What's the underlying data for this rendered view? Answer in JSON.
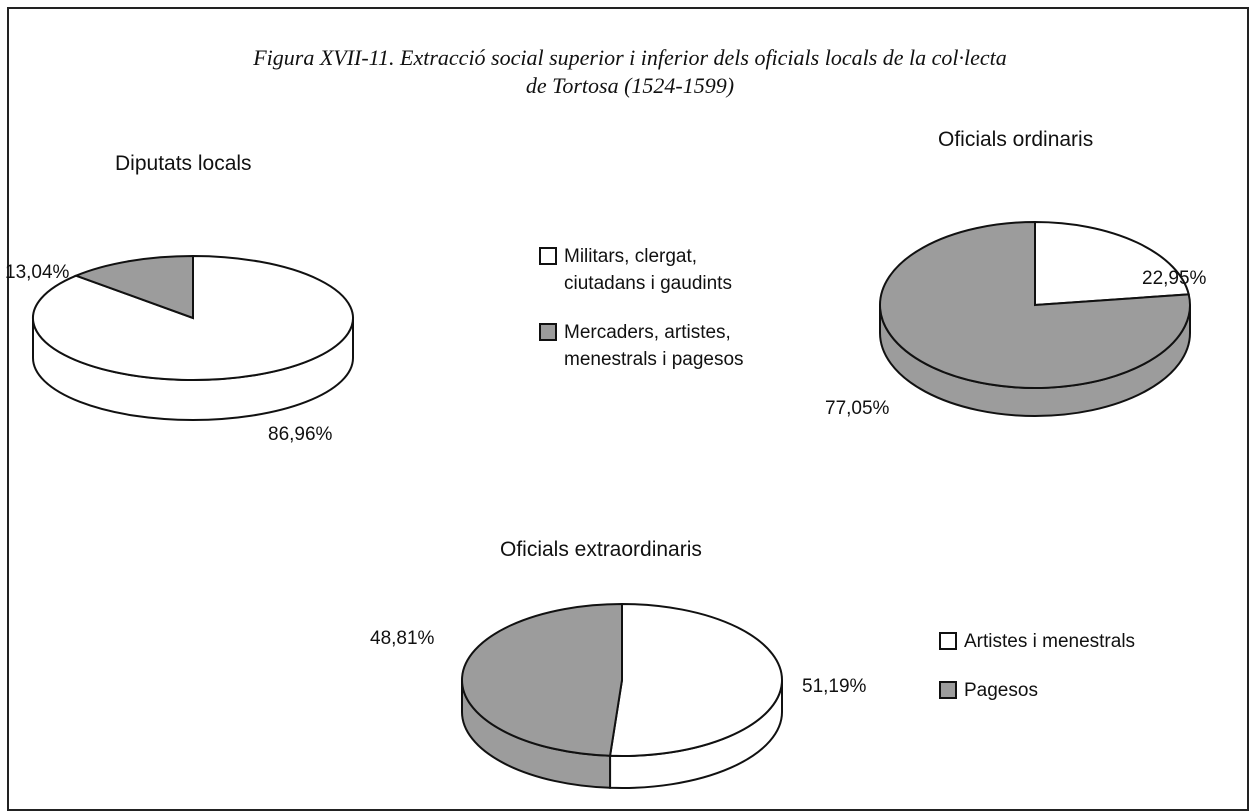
{
  "title": "Figura XVII-11. Extracció social superior i inferior dels oficials locals de la col·lecta de Tortosa (1524-1599)",
  "chart_data": [
    {
      "type": "pie",
      "title": "Diputats locals",
      "categories": [
        "Militars, clergat, ciutadans i gaudints",
        "Mercaders, artistes, menestrals i pagesos"
      ],
      "colors": [
        "#ffffff",
        "#9c9c9c"
      ],
      "values": [
        86.96,
        13.04
      ],
      "value_labels": [
        "86,96%",
        "13,04%"
      ]
    },
    {
      "type": "pie",
      "title": "Oficials ordinaris",
      "colors": [
        "#ffffff",
        "#9c9c9c"
      ],
      "values": [
        22.95,
        77.05
      ],
      "value_labels": [
        "22,95%",
        "77,05%"
      ]
    },
    {
      "type": "pie",
      "title": "Oficials extraordinaris",
      "categories": [
        "Artistes i menestrals",
        "Pagesos"
      ],
      "colors": [
        "#ffffff",
        "#9c9c9c"
      ],
      "values": [
        51.19,
        48.81
      ],
      "value_labels": [
        "51,19%",
        "48,81%"
      ]
    }
  ]
}
